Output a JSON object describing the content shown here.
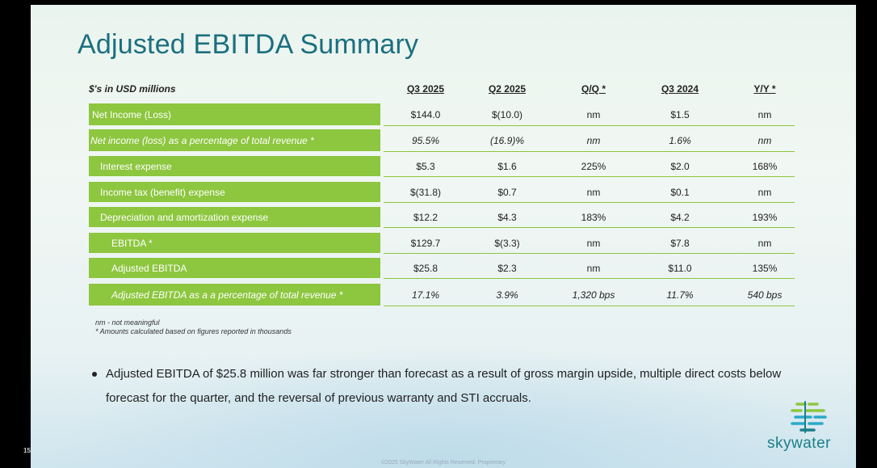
{
  "page_number": "15",
  "title": "Adjusted EBITDA Summary",
  "table": {
    "unit_label": "$'s in USD millions",
    "columns": [
      "Q3 2025",
      "Q2 2025",
      "Q/Q *",
      "Q3 2024",
      "Y/Y *"
    ],
    "rows": [
      {
        "label": "Net Income (Loss)",
        "values": [
          "$144.0",
          "$(10.0)",
          "nm",
          "$1.5",
          "nm"
        ]
      },
      {
        "label": "Net income (loss) as a percentage of total revenue *",
        "values": [
          "95.5%",
          "(16.9)%",
          "nm",
          "1.6%",
          "nm"
        ]
      },
      {
        "label": "Interest expense",
        "values": [
          "$5.3",
          "$1.6",
          "225%",
          "$2.0",
          "168%"
        ]
      },
      {
        "label": "Income tax (benefit) expense",
        "values": [
          "$(31.8)",
          "$0.7",
          "nm",
          "$0.1",
          "nm"
        ]
      },
      {
        "label": "Depreciation and amortization expense",
        "values": [
          "$12.2",
          "$4.3",
          "183%",
          "$4.2",
          "193%"
        ]
      },
      {
        "label": "EBITDA *",
        "values": [
          "$129.7",
          "$(3.3)",
          "nm",
          "$7.8",
          "nm"
        ]
      },
      {
        "label": "Adjusted EBITDA",
        "values": [
          "$25.8",
          "$2.3",
          "nm",
          "$11.0",
          "135%"
        ]
      },
      {
        "label": "Adjusted EBITDA as a a percentage of total revenue *",
        "values": [
          "17.1%",
          "3.9%",
          "1,320 bps",
          "11.7%",
          "540 bps"
        ]
      }
    ]
  },
  "notes": [
    "nm - not meaningful",
    "* Amounts calculated based on figures reported in thousands"
  ],
  "bullet": "Adjusted EBITDA of $25.8 million was far stronger than forecast as a result of gross margin upside, multiple direct costs below forecast for the quarter, and the reversal of previous warranty and STI accruals.",
  "logo_text": "skywater",
  "footer": "©2025 SkyWater All Rights Reserved. Proprietary",
  "colors": {
    "accent_green": "#8dc63f",
    "title_teal": "#1b6f7f",
    "logo_teal": "#1b7f8a"
  }
}
